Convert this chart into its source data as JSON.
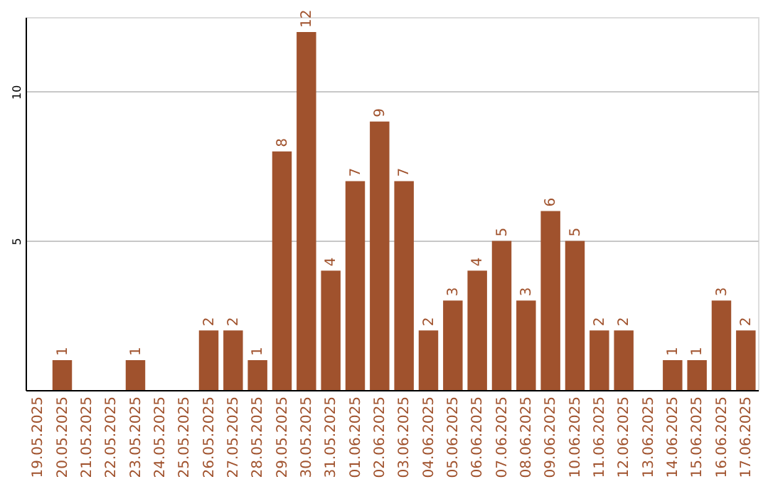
{
  "chart_data": {
    "type": "bar",
    "categories": [
      "19.05.2025",
      "20.05.2025",
      "21.05.2025",
      "22.05.2025",
      "23.05.2025",
      "24.05.2025",
      "25.05.2025",
      "26.05.2025",
      "27.05.2025",
      "28.05.2025",
      "29.05.2025",
      "30.05.2025",
      "31.05.2025",
      "01.06.2025",
      "02.06.2025",
      "03.06.2025",
      "04.06.2025",
      "05.06.2025",
      "06.06.2025",
      "07.06.2025",
      "08.06.2025",
      "09.06.2025",
      "10.06.2025",
      "11.06.2025",
      "12.06.2025",
      "13.06.2025",
      "14.06.2025",
      "15.06.2025",
      "16.06.2025",
      "17.06.2025"
    ],
    "values": [
      0,
      1,
      0,
      0,
      1,
      0,
      0,
      2,
      2,
      1,
      8,
      12,
      4,
      7,
      9,
      7,
      2,
      3,
      4,
      5,
      3,
      6,
      5,
      2,
      2,
      0,
      1,
      1,
      3,
      2
    ],
    "value_labels": [
      null,
      "1",
      null,
      null,
      "1",
      null,
      null,
      "2",
      "2",
      "1",
      "8",
      "12",
      "4",
      "7",
      "9",
      "7",
      "2",
      "3",
      "4",
      "5",
      "3",
      "6",
      "5",
      "2",
      "2",
      null,
      "1",
      "1",
      "3",
      "2"
    ],
    "color": "#a0522d",
    "ylim": [
      0,
      12.5
    ],
    "yticks": [
      5,
      10
    ],
    "grid": "y"
  }
}
